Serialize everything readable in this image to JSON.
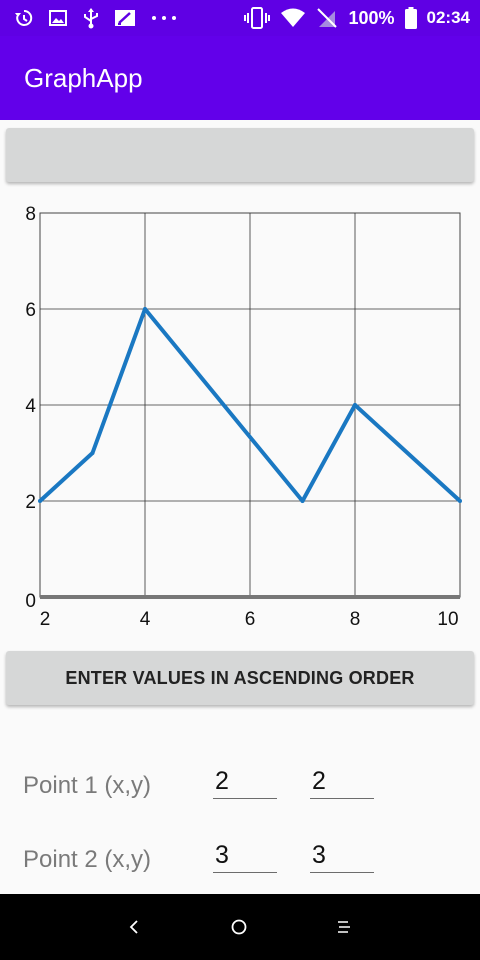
{
  "status_bar": {
    "left_icons": [
      "sync-icon",
      "image-icon",
      "usb-icon",
      "notes-icon",
      "more-dots-icon"
    ],
    "right_icons": [
      "vibrate-icon",
      "wifi-icon",
      "no-sim-icon",
      "battery-icon"
    ],
    "battery": "100%",
    "time": "02:34"
  },
  "app_bar": {
    "title": "GraphApp"
  },
  "top_button": {
    "label": ""
  },
  "chart_data": {
    "type": "line",
    "x": [
      2,
      3,
      4,
      7,
      8,
      10
    ],
    "series": [
      {
        "values": [
          2,
          3,
          6,
          2,
          4,
          2
        ],
        "color": "#1a78c2"
      }
    ],
    "xlim": [
      2,
      10
    ],
    "ylim": [
      0,
      8
    ],
    "x_ticks": [
      "2",
      "4",
      "6",
      "8",
      "10"
    ],
    "y_ticks": [
      "0",
      "2",
      "4",
      "6",
      "8"
    ],
    "grid": true
  },
  "order_button": {
    "label": "ENTER VALUES IN ASCENDING ORDER"
  },
  "points": [
    {
      "label": "Point 1 (x,y)",
      "x": "2",
      "y": "2"
    },
    {
      "label": "Point 2 (x,y)",
      "x": "3",
      "y": "3"
    }
  ],
  "nav_bar": {
    "icons": [
      "back-icon",
      "home-icon",
      "recents-icon"
    ]
  }
}
